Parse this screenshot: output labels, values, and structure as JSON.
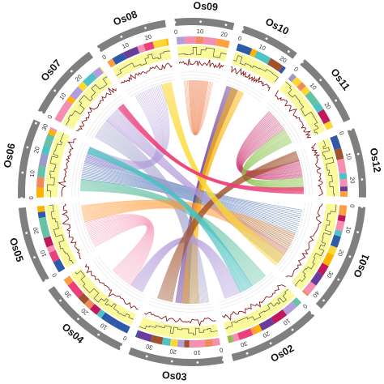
{
  "chromosomes": [
    {
      "name": "Os01",
      "length": 43
    },
    {
      "name": "Os02",
      "length": 36
    },
    {
      "name": "Os03",
      "length": 37
    },
    {
      "name": "Os04",
      "length": 36
    },
    {
      "name": "Os05",
      "length": 30
    },
    {
      "name": "Os06",
      "length": 31
    },
    {
      "name": "Os07",
      "length": 30
    },
    {
      "name": "Os08",
      "length": 28
    },
    {
      "name": "Os09",
      "length": 23
    },
    {
      "name": "Os10",
      "length": 23
    },
    {
      "name": "Os11",
      "length": 29
    },
    {
      "name": "Os12",
      "length": 27
    }
  ],
  "tick_labels": {
    "Os01": [
      "0",
      "10",
      "20",
      "30",
      "40"
    ],
    "Os02": [
      "0",
      "10",
      "20",
      "30"
    ],
    "Os03": [
      "0",
      "10",
      "20",
      "30"
    ],
    "Os04": [
      "0",
      "10",
      "20",
      "30"
    ],
    "Os05": [
      "0",
      "10",
      "20"
    ],
    "Os06": [
      "0",
      "10",
      "20",
      "30"
    ],
    "Os07": [
      "0",
      "10",
      "20"
    ],
    "Os08": [
      "0",
      "10",
      "20"
    ],
    "Os09": [
      "0",
      "10",
      "20"
    ],
    "Os10": [
      "0",
      "10",
      "20"
    ],
    "Os11": [
      "0",
      "10",
      "20"
    ],
    "Os12": [
      "0",
      "10",
      "20"
    ]
  },
  "colors": {
    "ideogram": "#7f7f7f",
    "heat_track_bg": "#fafa9a",
    "line_track": "#8a1a1a",
    "line_track_fill": "#f6cfd0",
    "palette": [
      "#f08a5d",
      "#ffb300",
      "#6a3d9a",
      "#c2185b",
      "#8bc34a",
      "#a0522d",
      "#2e5aa8",
      "#f48fb1",
      "#ff9f40",
      "#b39ddb",
      "#66c2a5",
      "#fdd835",
      "#ec407a",
      "#4fc3c3",
      "#9e9ac8"
    ]
  },
  "synteny_links": [
    {
      "from": [
        "Os09",
        2,
        16
      ],
      "to": [
        "Os09",
        5,
        19
      ],
      "color": "#f08a5d"
    },
    {
      "from": [
        "Os10",
        1,
        8
      ],
      "to": [
        "Os03",
        14,
        22
      ],
      "color": "#6a3d9a"
    },
    {
      "from": [
        "Os10",
        4,
        12
      ],
      "to": [
        "Os03",
        8,
        18
      ],
      "color": "#ffb300"
    },
    {
      "from": [
        "Os11",
        4,
        18
      ],
      "to": [
        "Os12",
        6,
        16
      ],
      "color": "#c2185b"
    },
    {
      "from": [
        "Os11",
        18,
        27
      ],
      "to": [
        "Os12",
        16,
        24
      ],
      "color": "#8bc34a"
    },
    {
      "from": [
        "Os06",
        10,
        26
      ],
      "to": [
        "Os01",
        5,
        30
      ],
      "color": "#2e5aa8"
    },
    {
      "from": [
        "Os06",
        3,
        10
      ],
      "to": [
        "Os02",
        4,
        14
      ],
      "color": "#66c2a5"
    },
    {
      "from": [
        "Os07",
        2,
        14
      ],
      "to": [
        "Os03",
        2,
        14
      ],
      "color": "#9e9ac8"
    },
    {
      "from": [
        "Os07",
        14,
        24
      ],
      "to": [
        "Os01",
        30,
        40
      ],
      "color": "#b39ddb"
    },
    {
      "from": [
        "Os05",
        2,
        18
      ],
      "to": [
        "Os04",
        10,
        24
      ],
      "color": "#f48fb1"
    },
    {
      "from": [
        "Os05",
        18,
        28
      ],
      "to": [
        "Os01",
        20,
        34
      ],
      "color": "#ff9f40"
    },
    {
      "from": [
        "Os04",
        2,
        10
      ],
      "to": [
        "Os02",
        22,
        32
      ],
      "color": "#b39ddb"
    },
    {
      "from": [
        "Os03",
        24,
        33
      ],
      "to": [
        "Os12",
        0,
        6
      ],
      "color": "#a0522d"
    },
    {
      "from": [
        "Os08",
        3,
        20
      ],
      "to": [
        "Os06",
        20,
        30
      ],
      "color": "#b39ddb"
    },
    {
      "from": [
        "Os08",
        20,
        26
      ],
      "to": [
        "Os01",
        34,
        42
      ],
      "color": "#fdd835"
    },
    {
      "from": [
        "Os02",
        14,
        22
      ],
      "to": [
        "Os06",
        26,
        30
      ],
      "color": "#4fc3c3"
    },
    {
      "from": [
        "Os12",
        22,
        26
      ],
      "to": [
        "Os07",
        24,
        28
      ],
      "color": "#ec407a"
    }
  ],
  "icons": {
    "tick_marker": "dot-marker"
  }
}
